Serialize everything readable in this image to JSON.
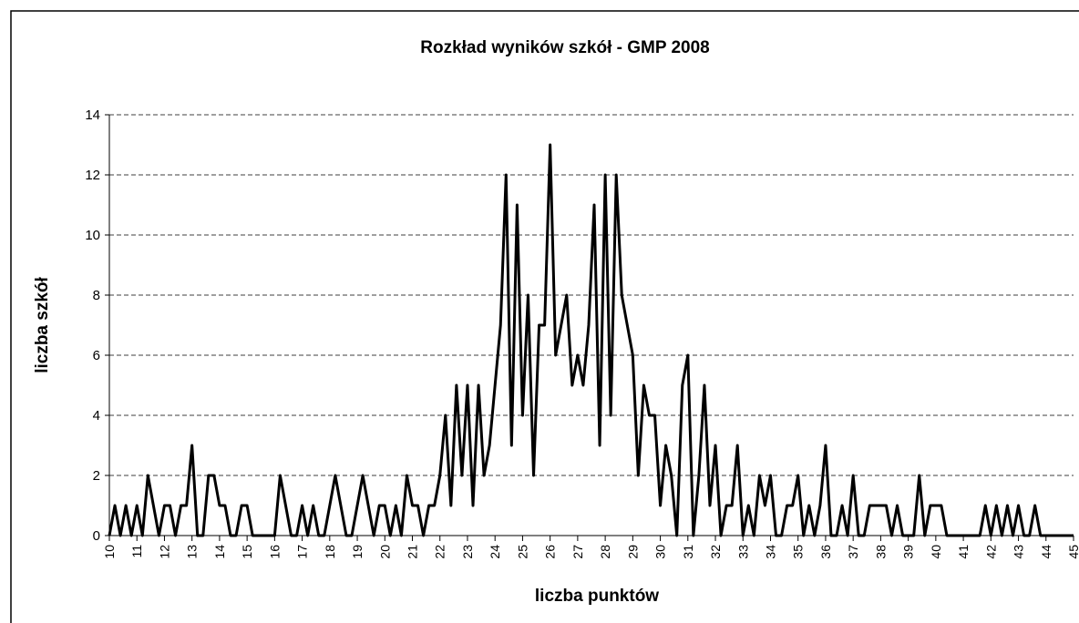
{
  "chart_data": {
    "type": "line",
    "title": "Rozkład wyników szkół - GMP 2008",
    "x_label": "liczba punktów",
    "y_label": "liczba szkół",
    "x": [
      10,
      10.2,
      10.4,
      10.6,
      10.8,
      11,
      11.2,
      11.4,
      11.6,
      11.8,
      12,
      12.2,
      12.4,
      12.6,
      12.8,
      13,
      13.2,
      13.4,
      13.6,
      13.8,
      14,
      14.2,
      14.4,
      14.6,
      14.8,
      15,
      15.2,
      15.4,
      15.6,
      15.8,
      16,
      16.2,
      16.4,
      16.6,
      16.8,
      17,
      17.2,
      17.4,
      17.6,
      17.8,
      18,
      18.2,
      18.4,
      18.6,
      18.8,
      19,
      19.2,
      19.4,
      19.6,
      19.8,
      20,
      20.2,
      20.4,
      20.6,
      20.8,
      21,
      21.2,
      21.4,
      21.6,
      21.8,
      22,
      22.2,
      22.4,
      22.6,
      22.8,
      23,
      23.2,
      23.4,
      23.6,
      23.8,
      24,
      24.2,
      24.4,
      24.6,
      24.8,
      25,
      25.2,
      25.4,
      25.6,
      25.8,
      26,
      26.2,
      26.4,
      26.6,
      26.8,
      27,
      27.2,
      27.4,
      27.6,
      27.8,
      28,
      28.2,
      28.4,
      28.6,
      28.8,
      29,
      29.2,
      29.4,
      29.6,
      29.8,
      30,
      30.2,
      30.4,
      30.6,
      30.8,
      31,
      31.2,
      31.4,
      31.6,
      31.8,
      32,
      32.2,
      32.4,
      32.6,
      32.8,
      33,
      33.2,
      33.4,
      33.6,
      33.8,
      34,
      34.2,
      34.4,
      34.6,
      34.8,
      35,
      35.2,
      35.4,
      35.6,
      35.8,
      36,
      36.2,
      36.4,
      36.6,
      36.8,
      37,
      37.2,
      37.4,
      37.6,
      37.8,
      38,
      38.2,
      38.4,
      38.6,
      38.8,
      39,
      39.2,
      39.4,
      39.6,
      39.8,
      40,
      40.2,
      40.4,
      40.6,
      40.8,
      41,
      41.2,
      41.4,
      41.6,
      41.8,
      42,
      42.2,
      42.4,
      42.6,
      42.8,
      43,
      43.2,
      43.4,
      43.6,
      43.8,
      44,
      44.2,
      44.4,
      44.6,
      44.8,
      45
    ],
    "values": [
      0,
      1,
      0,
      1,
      0,
      1,
      0,
      2,
      1,
      0,
      1,
      1,
      0,
      1,
      1,
      3,
      0,
      0,
      2,
      2,
      1,
      1,
      0,
      0,
      1,
      1,
      0,
      0,
      0,
      0,
      0,
      2,
      1,
      0,
      0,
      1,
      0,
      1,
      0,
      0,
      1,
      2,
      1,
      0,
      0,
      1,
      2,
      1,
      0,
      1,
      1,
      0,
      1,
      0,
      2,
      1,
      1,
      0,
      1,
      1,
      2,
      4,
      1,
      5,
      2,
      5,
      1,
      5,
      2,
      3,
      5,
      7,
      12,
      3,
      11,
      4,
      8,
      2,
      7,
      7,
      13,
      6,
      7,
      8,
      5,
      6,
      5,
      7,
      11,
      3,
      12,
      4,
      12,
      8,
      7,
      6,
      2,
      5,
      4,
      4,
      1,
      3,
      2,
      0,
      5,
      6,
      0,
      2,
      5,
      1,
      3,
      0,
      1,
      1,
      3,
      0,
      1,
      0,
      2,
      1,
      2,
      0,
      0,
      1,
      1,
      2,
      0,
      1,
      0,
      1,
      3,
      0,
      0,
      1,
      0,
      2,
      0,
      0,
      1,
      1,
      1,
      1,
      0,
      1,
      0,
      0,
      0,
      2,
      0,
      1,
      1,
      1,
      0,
      0,
      0,
      0,
      0,
      0,
      0,
      1,
      0,
      1,
      0,
      1,
      0,
      1,
      0,
      0,
      1,
      0,
      0,
      0,
      0,
      0,
      0,
      0
    ],
    "color": "#000000",
    "xlim": [
      10,
      45
    ],
    "xticks": [
      10,
      11,
      12,
      13,
      14,
      15,
      16,
      17,
      18,
      19,
      20,
      21,
      22,
      23,
      24,
      25,
      26,
      27,
      28,
      29,
      30,
      31,
      32,
      33,
      34,
      35,
      36,
      37,
      38,
      39,
      40,
      41,
      42,
      43,
      44,
      45
    ],
    "ylim": [
      0,
      14
    ],
    "yticks": [
      0,
      2,
      4,
      6,
      8,
      10,
      12,
      14
    ],
    "grid": true
  }
}
